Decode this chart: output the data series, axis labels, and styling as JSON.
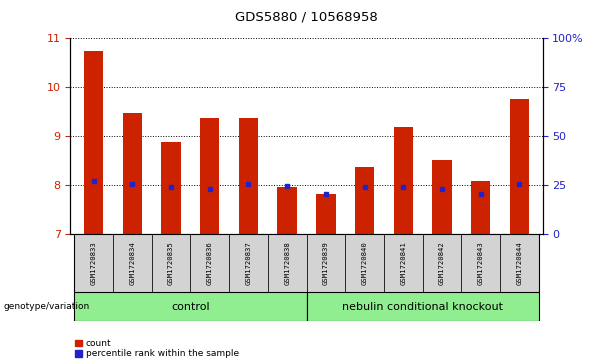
{
  "title": "GDS5880 / 10568958",
  "samples": [
    "GSM1720833",
    "GSM1720834",
    "GSM1720835",
    "GSM1720836",
    "GSM1720837",
    "GSM1720838",
    "GSM1720839",
    "GSM1720840",
    "GSM1720841",
    "GSM1720842",
    "GSM1720843",
    "GSM1720844"
  ],
  "bar_tops": [
    10.73,
    9.47,
    8.88,
    9.37,
    9.37,
    7.97,
    7.82,
    8.38,
    9.18,
    8.52,
    8.08,
    9.75
  ],
  "bar_bottom": 7.0,
  "percentile_values": [
    8.08,
    8.02,
    7.97,
    7.92,
    8.02,
    7.98,
    7.82,
    7.97,
    7.97,
    7.92,
    7.82,
    8.02
  ],
  "ylim_left": [
    7,
    11
  ],
  "ylim_right": [
    0,
    100
  ],
  "yticks_left": [
    7,
    8,
    9,
    10,
    11
  ],
  "yticks_right": [
    0,
    25,
    50,
    75,
    100
  ],
  "ytick_labels_right": [
    "0",
    "25",
    "50",
    "75",
    "100%"
  ],
  "bar_color": "#cc2200",
  "dot_color": "#2222cc",
  "control_label": "control",
  "knockout_label": "nebulin conditional knockout",
  "genotype_label": "genotype/variation",
  "legend_count": "count",
  "legend_percentile": "percentile rank within the sample",
  "control_bg": "#90ee90",
  "knockout_bg": "#90ee90",
  "sample_bg": "#d3d3d3",
  "bar_width": 0.5,
  "n_control": 6,
  "n_knockout": 6
}
